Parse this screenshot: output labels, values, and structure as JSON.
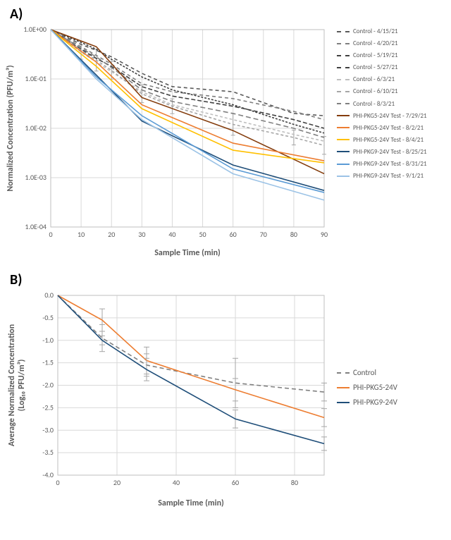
{
  "panelA": {
    "label": "A)",
    "type": "line-log",
    "x_title": "Sample Time (min)",
    "y_title": "Normalized Concentration (PFU/m³)",
    "xlim": [
      0,
      90
    ],
    "xtick_step": 10,
    "y_log_exp_min": -4,
    "y_log_exp_max": 0,
    "ytick_labels": [
      "1.0E-04",
      "1.0E-03",
      "1.0E-02",
      "1.0E-01",
      "1.0E+00"
    ],
    "grid_color": "#d9d9d9",
    "border_color": "#bfbfbf",
    "background_color": "#ffffff",
    "title_fontsize": 12,
    "tick_fontsize": 10,
    "error_x": [
      10,
      15,
      20,
      30,
      40,
      60,
      80,
      90
    ],
    "error_half_log": {
      "10": 0.18,
      "15": 0.22,
      "20": 0.18,
      "30": 0.18,
      "40": 0.15,
      "60": 0.22,
      "80": 0.15,
      "90": 0.18
    },
    "series": [
      {
        "name": "Control - 4/15/21",
        "color": "#595959",
        "dash": "5,4",
        "x": [
          0,
          10,
          15,
          20,
          30,
          40,
          60,
          80,
          90
        ],
        "y": [
          1.0,
          0.5,
          0.38,
          0.28,
          0.13,
          0.07,
          0.055,
          0.02,
          0.018
        ]
      },
      {
        "name": "Control - 4/20/21",
        "color": "#7f7f7f",
        "dash": "5,4",
        "x": [
          0,
          10,
          15,
          20,
          30,
          40,
          60,
          80,
          90
        ],
        "y": [
          1.0,
          0.45,
          0.3,
          0.2,
          0.08,
          0.055,
          0.04,
          0.022,
          0.015
        ]
      },
      {
        "name": "Control - 5/19/21",
        "color": "#404040",
        "dash": "3,2",
        "x": [
          0,
          10,
          15,
          20,
          30,
          40,
          60,
          80,
          90
        ],
        "y": [
          1.0,
          0.55,
          0.4,
          0.25,
          0.11,
          0.06,
          0.03,
          0.012,
          0.008
        ]
      },
      {
        "name": "Control - 5/27/21",
        "color": "#404040",
        "dash": "6,3",
        "x": [
          0,
          10,
          15,
          20,
          30,
          40,
          60,
          80,
          90
        ],
        "y": [
          1.0,
          0.4,
          0.26,
          0.18,
          0.07,
          0.045,
          0.028,
          0.015,
          0.01
        ]
      },
      {
        "name": "Control - 6/3/21",
        "color": "#bfbfbf",
        "dash": "4,3",
        "x": [
          0,
          10,
          15,
          20,
          30,
          40,
          60,
          80,
          90
        ],
        "y": [
          1.0,
          0.35,
          0.22,
          0.14,
          0.055,
          0.03,
          0.015,
          0.0075,
          0.0055
        ]
      },
      {
        "name": "Control - 6/10/21",
        "color": "#a6a6a6",
        "dash": "4,3",
        "x": [
          0,
          10,
          15,
          20,
          30,
          40,
          60,
          80,
          90
        ],
        "y": [
          1.0,
          0.38,
          0.24,
          0.15,
          0.05,
          0.028,
          0.012,
          0.0065,
          0.0045
        ]
      },
      {
        "name": "Control - 8/3/21",
        "color": "#808080",
        "dash": "7,4",
        "x": [
          0,
          10,
          15,
          20,
          30,
          40,
          60,
          80,
          90
        ],
        "y": [
          1.0,
          0.42,
          0.28,
          0.17,
          0.06,
          0.035,
          0.02,
          0.01,
          0.0065
        ]
      },
      {
        "name": "PHI-PKG5-24V Test - 7/29/21",
        "color": "#843c0c",
        "dash": "",
        "x": [
          0,
          15,
          30,
          60,
          90
        ],
        "y": [
          1.0,
          0.45,
          0.042,
          0.009,
          0.0012
        ]
      },
      {
        "name": "PHI-PKG5-24V Test - 8/2/21",
        "color": "#ed7d31",
        "dash": "",
        "x": [
          0,
          15,
          30,
          60,
          90
        ],
        "y": [
          1.0,
          0.22,
          0.03,
          0.005,
          0.0022
        ]
      },
      {
        "name": "PHI-PKG5-24V Test - 8/4/21",
        "color": "#ffc000",
        "dash": "",
        "x": [
          0,
          15,
          30,
          60,
          90
        ],
        "y": [
          1.0,
          0.18,
          0.025,
          0.0036,
          0.002
        ]
      },
      {
        "name": "PHI-PKG9-24V Test - 8/25/21",
        "color": "#1f4e79",
        "dash": "",
        "x": [
          0,
          15,
          30,
          60,
          90
        ],
        "y": [
          1.0,
          0.12,
          0.014,
          0.0018,
          0.00055
        ]
      },
      {
        "name": "PHI-PKG9-24V Test - 8/31/21",
        "color": "#5b9bd5",
        "dash": "",
        "x": [
          0,
          15,
          30,
          60,
          90
        ],
        "y": [
          1.0,
          0.11,
          0.018,
          0.0015,
          0.0005
        ]
      },
      {
        "name": "PHI-PKG9-24V Test - 9/1/21",
        "color": "#9cc3e6",
        "dash": "",
        "x": [
          0,
          15,
          30,
          60,
          90
        ],
        "y": [
          1.0,
          0.1,
          0.015,
          0.0012,
          0.00035
        ]
      }
    ]
  },
  "panelB": {
    "label": "B)",
    "type": "line",
    "x_title": "Sample Time (min)",
    "y_title_line1": "Average Normalized Concentration",
    "y_title_line2": "(Log₁₀ PFU/m³)",
    "xlim": [
      0,
      90
    ],
    "xtick_step": 20,
    "ylim": [
      -4.0,
      0
    ],
    "ytick_step": 0.5,
    "grid_color": "#d9d9d9",
    "border_color": "#bfbfbf",
    "title_fontsize": 12,
    "series": [
      {
        "name": "Control",
        "color": "#808080",
        "dash": "6,4",
        "x": [
          0,
          15,
          30,
          60,
          90
        ],
        "y": [
          0,
          -0.95,
          -1.55,
          -1.95,
          -2.15
        ],
        "err": [
          0,
          0.3,
          0.25,
          0.55,
          0.2
        ]
      },
      {
        "name": "PHI-PKG5-24V",
        "color": "#ed7d31",
        "dash": "",
        "x": [
          0,
          15,
          30,
          60,
          90
        ],
        "y": [
          0,
          -0.55,
          -1.45,
          -2.1,
          -2.72
        ],
        "err": [
          0,
          0.25,
          0.3,
          0.25,
          0.2
        ]
      },
      {
        "name": "PHI-PKG9-24V",
        "color": "#1f4e79",
        "dash": "",
        "x": [
          0,
          15,
          30,
          60,
          90
        ],
        "y": [
          0,
          -1.0,
          -1.65,
          -2.75,
          -3.3
        ],
        "err": [
          0,
          0.1,
          0.25,
          0.2,
          0.15
        ]
      }
    ]
  }
}
